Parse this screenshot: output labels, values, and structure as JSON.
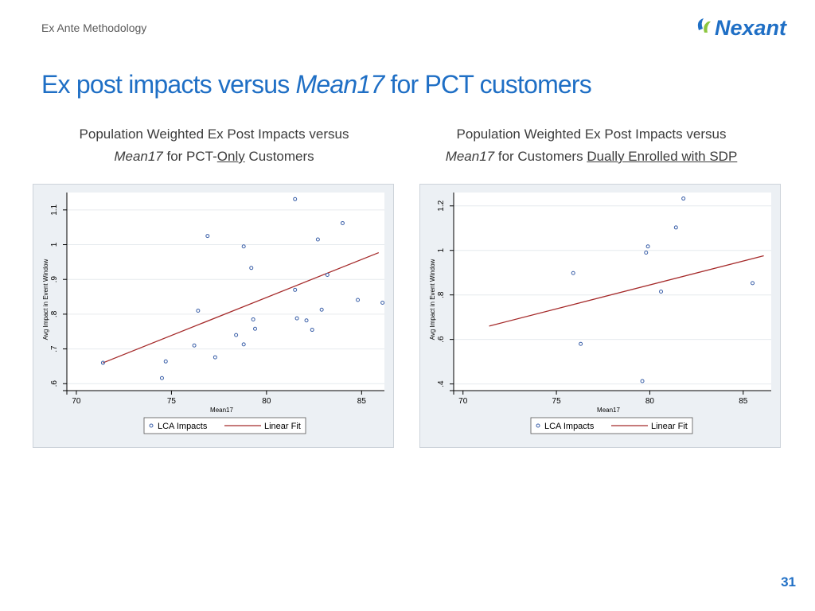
{
  "header": {
    "section": "Ex Ante Methodology",
    "logo_text": "Nexant",
    "title_pre": "Ex post impacts versus ",
    "title_em": "Mean17",
    "title_post": " for PCT customers"
  },
  "colors": {
    "title": "#1f6fc5",
    "marker": "#3a5fa8",
    "fit_line": "#a52a2a",
    "panel_bg": "#ecf0f4",
    "plot_bg": "#ffffff"
  },
  "left_heading": {
    "line1": "Population Weighted Ex Post Impacts versus",
    "em": "Mean17",
    "mid": " for PCT-",
    "ul": "Only",
    "post": " Customers"
  },
  "right_heading": {
    "line1": "Population Weighted Ex Post Impacts versus",
    "em": "Mean17",
    "mid": " for Customers ",
    "ul": "Dually Enrolled with SDP"
  },
  "chart_data": [
    {
      "type": "scatter",
      "xlabel": "Mean17",
      "ylabel": "Avg Impact in Event Window",
      "xlim": [
        69.5,
        86.2
      ],
      "ylim": [
        0.58,
        1.15
      ],
      "xticks": [
        70,
        75,
        80,
        85
      ],
      "yticks": [
        0.6,
        0.7,
        0.8,
        0.9,
        1.0,
        1.1
      ],
      "ytick_labels": [
        ".6",
        ".7",
        ".8",
        ".9",
        "1",
        "1.1"
      ],
      "grid": true,
      "legend_position": "bottom",
      "series": [
        {
          "name": "LCA Impacts",
          "kind": "points",
          "points": [
            [
              71.4,
              0.66
            ],
            [
              74.5,
              0.616
            ],
            [
              74.7,
              0.664
            ],
            [
              76.2,
              0.71
            ],
            [
              76.4,
              0.81
            ],
            [
              76.9,
              1.025
            ],
            [
              77.3,
              0.676
            ],
            [
              78.4,
              0.74
            ],
            [
              78.8,
              0.995
            ],
            [
              78.8,
              0.713
            ],
            [
              79.2,
              0.933
            ],
            [
              79.3,
              0.785
            ],
            [
              79.4,
              0.758
            ],
            [
              81.5,
              1.131
            ],
            [
              81.5,
              0.87
            ],
            [
              81.6,
              0.788
            ],
            [
              82.1,
              0.782
            ],
            [
              82.4,
              0.755
            ],
            [
              82.7,
              1.015
            ],
            [
              82.9,
              0.813
            ],
            [
              83.2,
              0.913
            ],
            [
              84.0,
              1.062
            ],
            [
              84.8,
              0.841
            ],
            [
              86.1,
              0.833
            ]
          ]
        },
        {
          "name": "Linear Fit",
          "kind": "line",
          "points": [
            [
              71.4,
              0.66
            ],
            [
              85.9,
              0.977
            ]
          ]
        }
      ]
    },
    {
      "type": "scatter",
      "xlabel": "Mean17",
      "ylabel": "Avg Impact in Event Window",
      "xlim": [
        69.5,
        86.5
      ],
      "ylim": [
        0.37,
        1.26
      ],
      "xticks": [
        70,
        75,
        80,
        85
      ],
      "yticks": [
        0.4,
        0.6,
        0.8,
        1.0,
        1.2
      ],
      "ytick_labels": [
        ".4",
        ".6",
        ".8",
        "1",
        "1.2"
      ],
      "grid": true,
      "legend_position": "bottom",
      "series": [
        {
          "name": "LCA Impacts",
          "kind": "points",
          "points": [
            [
              75.9,
              0.898
            ],
            [
              76.3,
              0.58
            ],
            [
              79.6,
              0.413
            ],
            [
              79.8,
              0.99
            ],
            [
              79.9,
              1.018
            ],
            [
              80.6,
              0.815
            ],
            [
              81.4,
              1.103
            ],
            [
              81.8,
              1.233
            ],
            [
              85.5,
              0.853
            ]
          ]
        },
        {
          "name": "Linear Fit",
          "kind": "line",
          "points": [
            [
              71.4,
              0.66
            ],
            [
              86.1,
              0.976
            ]
          ]
        }
      ]
    }
  ],
  "page_number": "31"
}
